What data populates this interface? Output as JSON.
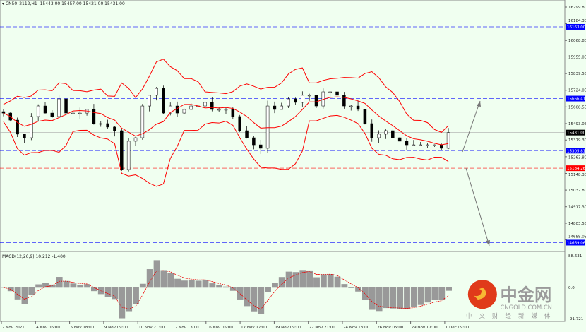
{
  "header": {
    "symbol": "CN50_2112,H1",
    "ohlc": "15443.00 15457.00 15421.00 15431.00"
  },
  "macd_label": "MACD(12,26,9) 10.212 -1.400",
  "logo": {
    "name": "中金网",
    "url_text": "CNGOLD.COM.CN",
    "tagline": "中 文 财 经 新 媒 体"
  },
  "chart_data": {
    "type": "candlestick",
    "price_ticks": [
      "16299.80",
      "16184.30",
      "16068.80",
      "15955.05",
      "15839.55",
      "15724.05",
      "15608.55",
      "15493.05",
      "15379.30",
      "15263.80",
      "15148.30",
      "15032.80",
      "14917.30",
      "14803.55",
      "14688.05"
    ],
    "ylim": [
      14640,
      16320
    ],
    "time_ticks": [
      "2 Nov 2021",
      "4 Nov 06:00",
      "5 Nov 18:00",
      "9 Nov 09:00",
      "10 Nov 21:00",
      "12 Nov 13:00",
      "16 Nov 05:00",
      "17 Nov 17:00",
      "19 Nov 09:00",
      "22 Nov 21:00",
      "24 Nov 13:00",
      "26 Nov 05:00",
      "29 Nov 17:00",
      "1 Dec 09:00"
    ],
    "closes": [
      15566,
      15517,
      15420,
      15395,
      15542,
      15615,
      15566,
      15542,
      15664,
      15566,
      15566,
      15566,
      15591,
      15493,
      15493,
      15469,
      15444,
      15175,
      15371,
      15395,
      15615,
      15689,
      15737,
      15566,
      15615,
      15566,
      15591,
      15615,
      15615,
      15640,
      15591,
      15591,
      15591,
      15542,
      15444,
      15395,
      15346,
      15322,
      15615,
      15591,
      15615,
      15664,
      15640,
      15689,
      15689,
      15615,
      15713,
      15713,
      15689,
      15615,
      15615,
      15591,
      15493,
      15395,
      15420,
      15444,
      15395,
      15371,
      15346,
      15346,
      15346,
      15346,
      15346,
      15322,
      15431
    ],
    "levels": [
      {
        "value": "16163.00",
        "color": "#0000ff",
        "style": "dashed"
      },
      {
        "value": "15666.41",
        "color": "#0000ff",
        "style": "dashed"
      },
      {
        "value": "15305.81",
        "color": "#0000ff",
        "style": "dashed"
      },
      {
        "value": "15184.26",
        "color": "#ff0000",
        "style": "dashed"
      },
      {
        "value": "14669.06",
        "color": "#0000ff",
        "style": "dashed"
      }
    ],
    "current_price": "15431.00",
    "macd_ticks": [
      "88.631",
      "0.0",
      "-91.721"
    ],
    "bollinger_color": "#ff0000",
    "projection_targets": [
      15666.41,
      14669.06
    ]
  }
}
